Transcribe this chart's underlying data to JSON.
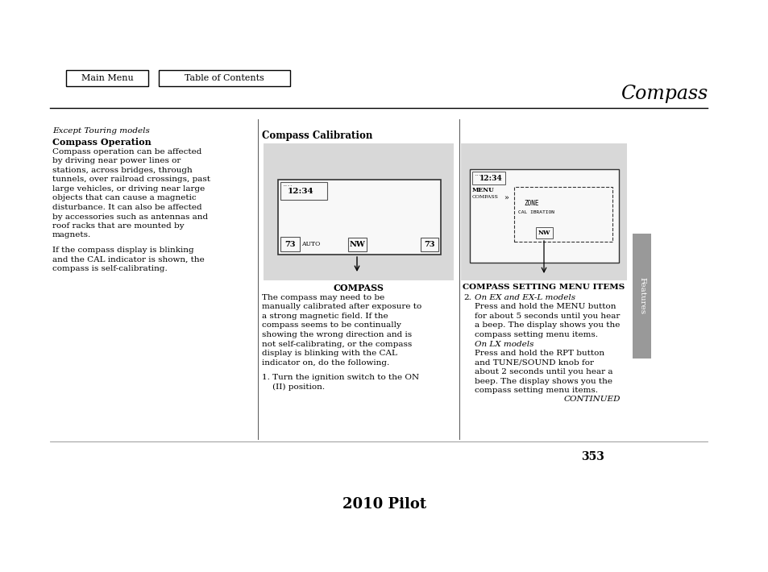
{
  "page_title": "Compass",
  "nav_buttons": [
    "Main Menu",
    "Table of Contents"
  ],
  "footer_text": "2010 Pilot",
  "page_number": "353",
  "sidebar_text": "Features",
  "left_col": {
    "italic_line": "Except Touring models",
    "bold_heading": "Compass Operation",
    "body_para1": "Compass operation can be affected\nby driving near power lines or\nstations, across bridges, through\ntunnels, over railroad crossings, past\nlarge vehicles, or driving near large\nobjects that can cause a magnetic\ndisturbance. It can also be affected\nby accessories such as antennas and\nroof racks that are mounted by\nmagnets.",
    "body_para2": "If the compass display is blinking\nand the CAL indicator is shown, the\ncompass is self-calibrating."
  },
  "center_col": {
    "heading": "Compass Calibration",
    "diagram_label": "COMPASS",
    "body": "The compass may need to be\nmanually calibrated after exposure to\na strong magnetic field. If the\ncompass seems to be continually\nshowing the wrong direction and is\nnot self-calibrating, or the compass\ndisplay is blinking with the CAL\nindicator on, do the following.\n\n1. Turn the ignition switch to the ON\n    (II) position."
  },
  "right_col": {
    "diagram_label": "COMPASS SETTING MENU ITEMS",
    "body_item2_italic": "On EX and EX-L models",
    "body_item2_text": "Press and hold the MENU button\nfor about 5 seconds until you hear\na beep. The display shows you the\ncompass setting menu items.",
    "body_lx_italic": "On LX models",
    "body_lx_text": "Press and hold the RPT button\nand TUNE/SOUND knob for\nabout 2 seconds until you hear a\nbeep. The display shows you the\ncompass setting menu items.",
    "continued": "CONTINUED"
  },
  "colors": {
    "background": "#ffffff",
    "text": "#000000",
    "diagram_bg": "#d8d8d8",
    "box_border": "#444444",
    "sidebar_bg": "#999999"
  }
}
